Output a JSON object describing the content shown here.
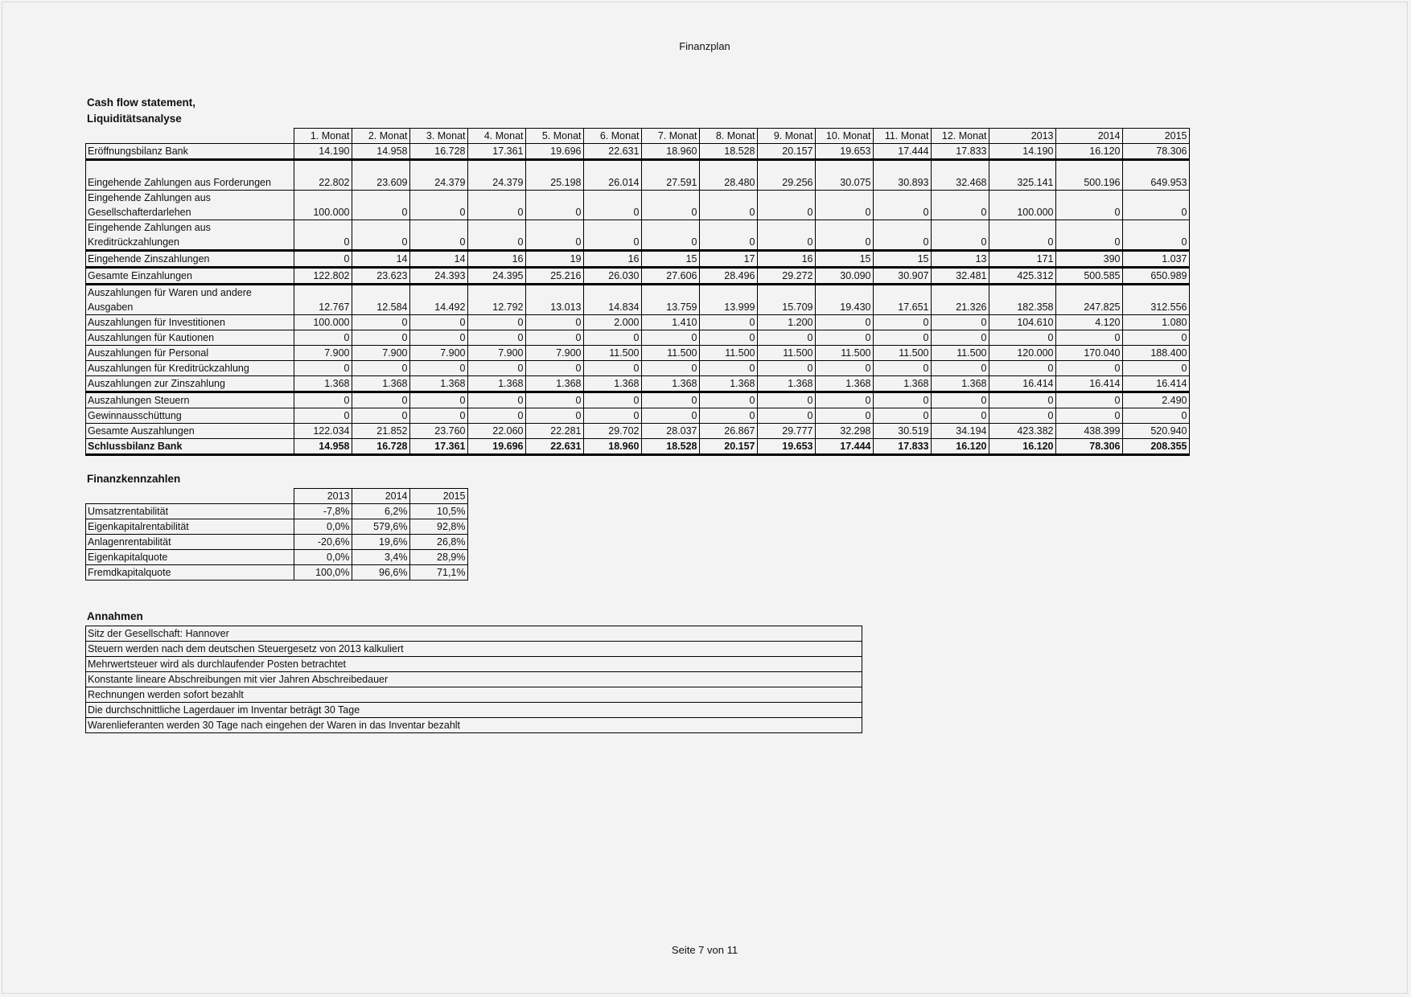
{
  "page_title": "Finanzplan",
  "footer": "Seite 7 von 11",
  "cashflow": {
    "heading_line1": "Cash flow statement,",
    "heading_line2": "Liquiditätsanalyse",
    "columns": [
      "1. Monat",
      "2. Monat",
      "3. Monat",
      "4. Monat",
      "5. Monat",
      "6. Monat",
      "7. Monat",
      "8. Monat",
      "9. Monat",
      "10. Monat",
      "11. Monat",
      "12. Monat",
      "2013",
      "2014",
      "2015"
    ],
    "rows": [
      {
        "label": "Eröffnungsbilanz Bank",
        "values": [
          "14.190",
          "14.958",
          "16.728",
          "17.361",
          "19.696",
          "22.631",
          "18.960",
          "18.528",
          "20.157",
          "19.653",
          "17.444",
          "17.833",
          "14.190",
          "16.120",
          "78.306"
        ]
      },
      {
        "label": "Eingehende Zahlungen aus Forderungen",
        "values": [
          "22.802",
          "23.609",
          "24.379",
          "24.379",
          "25.198",
          "26.014",
          "27.591",
          "28.480",
          "29.256",
          "30.075",
          "30.893",
          "32.468",
          "325.141",
          "500.196",
          "649.953"
        ]
      },
      {
        "label": "Eingehende Zahlungen aus Gesellschafterdarlehen",
        "values": [
          "100.000",
          "0",
          "0",
          "0",
          "0",
          "0",
          "0",
          "0",
          "0",
          "0",
          "0",
          "0",
          "100.000",
          "0",
          "0"
        ]
      },
      {
        "label": "Eingehende Zahlungen aus Kreditrückzahlungen",
        "values": [
          "0",
          "0",
          "0",
          "0",
          "0",
          "0",
          "0",
          "0",
          "0",
          "0",
          "0",
          "0",
          "0",
          "0",
          "0"
        ]
      },
      {
        "label": "Eingehende Zinszahlungen",
        "values": [
          "0",
          "14",
          "14",
          "16",
          "19",
          "16",
          "15",
          "17",
          "16",
          "15",
          "15",
          "13",
          "171",
          "390",
          "1.037"
        ]
      },
      {
        "label": "Gesamte Einzahlungen",
        "values": [
          "122.802",
          "23.623",
          "24.393",
          "24.395",
          "25.216",
          "26.030",
          "27.606",
          "28.496",
          "29.272",
          "30.090",
          "30.907",
          "32.481",
          "425.312",
          "500.585",
          "650.989"
        ]
      },
      {
        "label": "Auszahlungen für Waren und andere Ausgaben",
        "values": [
          "12.767",
          "12.584",
          "14.492",
          "12.792",
          "13.013",
          "14.834",
          "13.759",
          "13.999",
          "15.709",
          "19.430",
          "17.651",
          "21.326",
          "182.358",
          "247.825",
          "312.556"
        ]
      },
      {
        "label": "Auszahlungen für Investitionen",
        "values": [
          "100.000",
          "0",
          "0",
          "0",
          "0",
          "2.000",
          "1.410",
          "0",
          "1.200",
          "0",
          "0",
          "0",
          "104.610",
          "4.120",
          "1.080"
        ]
      },
      {
        "label": "Auszahlungen für Kautionen",
        "values": [
          "0",
          "0",
          "0",
          "0",
          "0",
          "0",
          "0",
          "0",
          "0",
          "0",
          "0",
          "0",
          "0",
          "0",
          "0"
        ]
      },
      {
        "label": "Auszahlungen für Personal",
        "values": [
          "7.900",
          "7.900",
          "7.900",
          "7.900",
          "7.900",
          "11.500",
          "11.500",
          "11.500",
          "11.500",
          "11.500",
          "11.500",
          "11.500",
          "120.000",
          "170.040",
          "188.400"
        ]
      },
      {
        "label": "Auszahlungen für Kreditrückzahlung",
        "values": [
          "0",
          "0",
          "0",
          "0",
          "0",
          "0",
          "0",
          "0",
          "0",
          "0",
          "0",
          "0",
          "0",
          "0",
          "0"
        ]
      },
      {
        "label": "Auszahlungen zur Zinszahlung",
        "values": [
          "1.368",
          "1.368",
          "1.368",
          "1.368",
          "1.368",
          "1.368",
          "1.368",
          "1.368",
          "1.368",
          "1.368",
          "1.368",
          "1.368",
          "16.414",
          "16.414",
          "16.414"
        ]
      },
      {
        "label": "Auszahlungen Steuern",
        "values": [
          "0",
          "0",
          "0",
          "0",
          "0",
          "0",
          "0",
          "0",
          "0",
          "0",
          "0",
          "0",
          "0",
          "0",
          "2.490"
        ]
      },
      {
        "label": "Gewinnausschüttung",
        "values": [
          "0",
          "0",
          "0",
          "0",
          "0",
          "0",
          "0",
          "0",
          "0",
          "0",
          "0",
          "0",
          "0",
          "0",
          "0"
        ]
      },
      {
        "label": "Gesamte Auszahlungen",
        "values": [
          "122.034",
          "21.852",
          "23.760",
          "22.060",
          "22.281",
          "29.702",
          "28.037",
          "26.867",
          "29.777",
          "32.298",
          "30.519",
          "34.194",
          "423.382",
          "438.399",
          "520.940"
        ]
      },
      {
        "label": "Schlussbilanz Bank",
        "values": [
          "14.958",
          "16.728",
          "17.361",
          "19.696",
          "22.631",
          "18.960",
          "18.528",
          "20.157",
          "19.653",
          "17.444",
          "17.833",
          "16.120",
          "16.120",
          "78.306",
          "208.355"
        ]
      }
    ]
  },
  "kennzahlen": {
    "heading": "Finanzkennzahlen",
    "columns": [
      "2013",
      "2014",
      "2015"
    ],
    "rows": [
      {
        "label": "Umsatzrentabilität",
        "values": [
          "-7,8%",
          "6,2%",
          "10,5%"
        ]
      },
      {
        "label": "Eigenkapitalrentabilität",
        "values": [
          "0,0%",
          "579,6%",
          "92,8%"
        ]
      },
      {
        "label": "Anlagenrentabilität",
        "values": [
          "-20,6%",
          "19,6%",
          "26,8%"
        ]
      },
      {
        "label": "Eigenkapitalquote",
        "values": [
          "0,0%",
          "3,4%",
          "28,9%"
        ]
      },
      {
        "label": "Fremdkapitalquote",
        "values": [
          "100,0%",
          "96,6%",
          "71,1%"
        ]
      }
    ]
  },
  "annahmen": {
    "heading": "Annahmen",
    "items": [
      "Sitz der Gesellschaft: Hannover",
      "Steuern werden nach dem deutschen Steuergesetz von 2013 kalkuliert",
      "Mehrwertsteuer wird als durchlaufender Posten betrachtet",
      "Konstante lineare Abschreibungen mit vier Jahren Abschreibedauer",
      "Rechnungen werden sofort bezahlt",
      "Die durchschnittliche Lagerdauer im Inventar beträgt 30 Tage",
      "Warenlieferanten werden 30 Tage nach eingehen der Waren in das Inventar bezahlt"
    ]
  }
}
